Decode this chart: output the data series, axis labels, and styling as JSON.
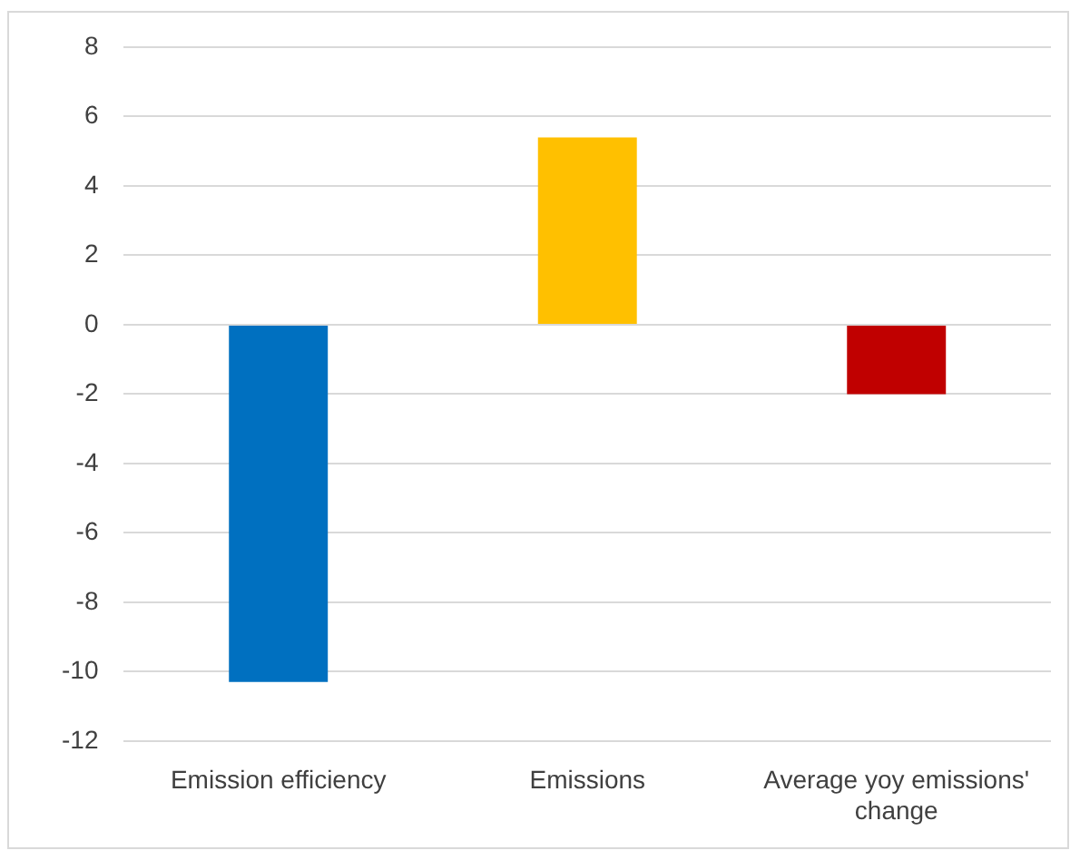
{
  "chart_data": {
    "type": "bar",
    "categories": [
      "Emission efficiency",
      "Emissions",
      "Average yoy emissions' change"
    ],
    "values": [
      -10.3,
      5.4,
      -2.0
    ],
    "colors": [
      "#0070c0",
      "#ffc000",
      "#c00000"
    ],
    "ylim": [
      -12,
      8
    ],
    "yticks": [
      -12,
      -10,
      -8,
      -6,
      -4,
      -2,
      0,
      2,
      4,
      6,
      8
    ],
    "grid": "y",
    "legend": false
  }
}
